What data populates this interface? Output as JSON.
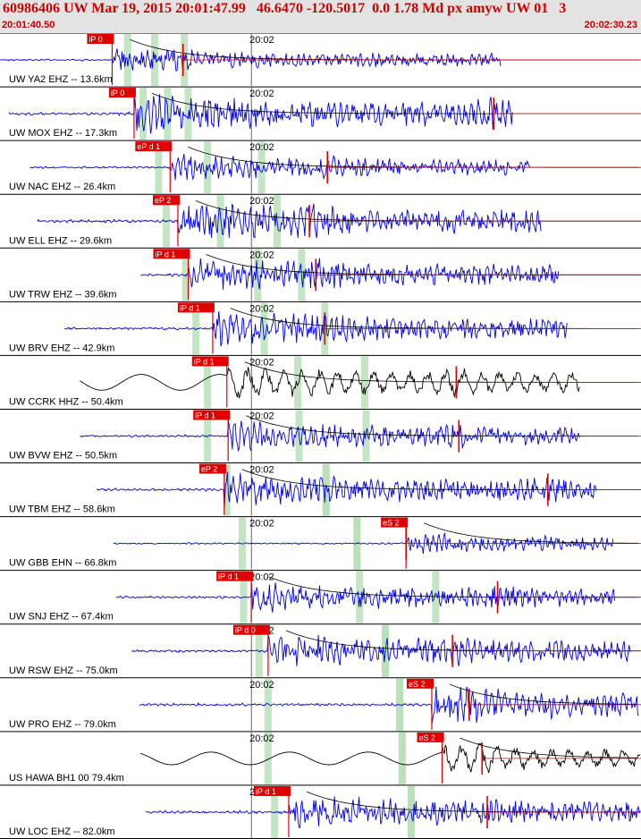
{
  "header": {
    "title": "60986406 UW Mar 19, 2015 20:01:47.99   46.6470 -120.5017  0.0 1.78 Md px amyw UW 01   3",
    "start_time": "20:01:40.50",
    "end_time": "20:02:30.23"
  },
  "colors": {
    "trace": "#0000e0",
    "trace_alt": "#000000",
    "pick": "#e00000",
    "window": "#b8e0b8",
    "axis": "#000000",
    "header_text": "#d00000",
    "header_bg": "#e3e3e3"
  },
  "chart_data": {
    "type": "line",
    "title": "60986406 UW Mar 19, 2015 20:01:47.99   46.6470 -120.5017  0.0 1.78 Md px amyw UW 01   3",
    "xlim": [
      "20:01:40.50",
      "20:02:30.23"
    ],
    "x_unit": "seconds after 20:01:40.50",
    "x_range_seconds": [
      0,
      49.73
    ],
    "minute_tick": {
      "label": "20:02",
      "seconds": 19.5
    },
    "grid": false,
    "traces": [
      {
        "label": "UW YA2 EHZ -- 13.6km",
        "pick": "iP 0",
        "p_s": 8.7,
        "s_s": 14.2,
        "start_s": 0.0,
        "end_s": 38.9,
        "amp": 0.5,
        "color": "blue",
        "windows_s": [
          9.9,
          12.0,
          14.3
        ]
      },
      {
        "label": "UW MOX EHZ -- 17.3km",
        "pick": "iP 0",
        "p_s": 10.4,
        "s_s": 38.3,
        "start_s": 0.7,
        "end_s": 39.8,
        "amp": 0.9,
        "color": "blue",
        "windows_s": [
          11.1,
          13.0,
          14.6
        ]
      },
      {
        "label": "UW NAC EHZ -- 26.4km",
        "pick": "eP d 1",
        "p_s": 13.2,
        "s_s": 25.4,
        "start_s": 2.3,
        "end_s": 41.2,
        "amp": 0.6,
        "color": "blue",
        "windows_s": [
          12.3,
          16.1,
          20.3
        ]
      },
      {
        "label": "UW ELL EHZ -- 29.6km",
        "pick": "eP 2",
        "p_s": 13.8,
        "s_s": 24.0,
        "start_s": 2.9,
        "end_s": 42.0,
        "amp": 0.9,
        "color": "blue",
        "windows_s": [
          12.9,
          17.1,
          21.5
        ]
      },
      {
        "label": "UW TRW EHZ -- 39.6km",
        "pick": "iP d 1",
        "p_s": 14.6,
        "s_s": 24.5,
        "start_s": 10.9,
        "end_s": 43.4,
        "amp": 0.8,
        "color": "blue",
        "windows_s": [
          14.4,
          20.0,
          23.4
        ]
      },
      {
        "label": "UW BRV EHZ -- 42.9km",
        "pick": "iP d 1",
        "p_s": 16.5,
        "s_s": 25.2,
        "start_s": 5.0,
        "end_s": 44.0,
        "amp": 0.8,
        "color": "blue",
        "windows_s": [
          15.2,
          20.5,
          25.2
        ]
      },
      {
        "label": "UW CCRK HHZ -- 50.4km",
        "pick": "iP d 1",
        "p_s": 17.6,
        "s_s": 35.4,
        "start_s": 6.2,
        "end_s": 45.0,
        "amp": 1.0,
        "color": "black",
        "windows_s": [
          16.1,
          23.1,
          28.3
        ]
      },
      {
        "label": "UW BVW EHZ -- 50.5km",
        "pick": "iP d 1",
        "p_s": 17.7,
        "s_s": 35.6,
        "start_s": 6.2,
        "end_s": 45.0,
        "amp": 0.7,
        "color": "blue",
        "windows_s": [
          16.1,
          23.2,
          28.4
        ]
      },
      {
        "label": "UW TBM EHZ -- 58.6km",
        "pick": "eP 2",
        "p_s": 17.4,
        "s_s": 42.5,
        "start_s": 7.5,
        "end_s": 46.3,
        "amp": 0.8,
        "color": "blue",
        "windows_s": [
          17.6,
          25.3,
          25.3
        ]
      },
      {
        "label": "UW GBB EHN -- 66.8km",
        "pick": "eS 2",
        "p_s": 31.5,
        "s_s": 31.5,
        "start_s": 8.8,
        "end_s": 47.6,
        "amp": 0.5,
        "color": "blue",
        "windows_s": [
          18.8,
          27.7,
          27.7
        ]
      },
      {
        "label": "UW SNJ EHZ -- 67.4km",
        "pick": "iP d 1",
        "p_s": 19.5,
        "s_s": 38.6,
        "start_s": 9.0,
        "end_s": 47.7,
        "amp": 0.7,
        "color": "blue",
        "windows_s": [
          18.9,
          27.9,
          33.8
        ]
      },
      {
        "label": "UW RSW EHZ -- 75.0km",
        "pick": "iP d 0",
        "p_s": 20.8,
        "s_s": 35.1,
        "start_s": 10.2,
        "end_s": 48.9,
        "amp": 0.8,
        "color": "blue",
        "windows_s": [
          20.1,
          29.9,
          29.9
        ]
      },
      {
        "label": "UW PRO EHZ -- 79.0km",
        "pick": "eS 2",
        "p_s": 33.5,
        "s_s": 36.4,
        "start_s": 10.8,
        "end_s": 49.6,
        "amp": 0.8,
        "color": "blue",
        "windows_s": [
          20.8,
          31.0,
          31.0
        ]
      },
      {
        "label": "US HAWA BH1 00 79.4km",
        "pick": "eS 2",
        "p_s": 34.3,
        "s_s": 37.4,
        "start_s": 10.9,
        "end_s": 49.7,
        "amp": 0.8,
        "color": "black",
        "windows_s": [
          20.8,
          31.2,
          31.2
        ]
      },
      {
        "label": "UW LOC EHZ -- 82.0km",
        "pick": "iP d 1",
        "p_s": 22.4,
        "s_s": 37.8,
        "start_s": 11.3,
        "end_s": 49.7,
        "amp": 0.8,
        "color": "blue",
        "windows_s": [
          21.3,
          31.9,
          31.9
        ]
      }
    ]
  }
}
